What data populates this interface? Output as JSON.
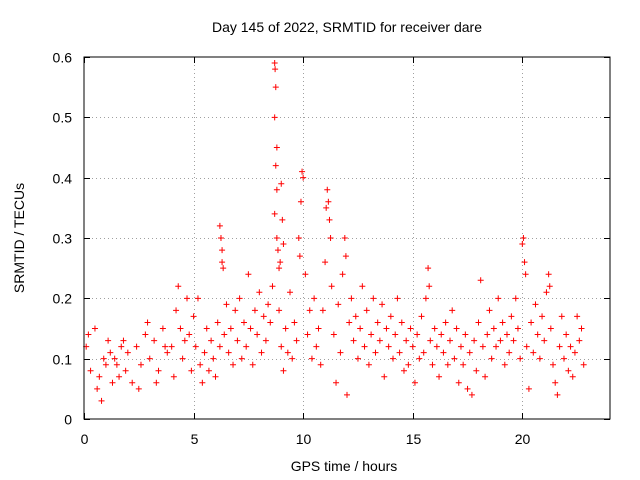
{
  "chart_data": {
    "type": "scatter",
    "title": "Day 145 of 2022, SRMTID for receiver dare",
    "xlabel": "GPS time / hours",
    "ylabel": "SRMTID / TECUs",
    "xlim": [
      0,
      24
    ],
    "ylim": [
      0,
      0.6
    ],
    "xticks": [
      0,
      5,
      10,
      15,
      20
    ],
    "xtick_labels": [
      "0",
      "5",
      "10",
      "15",
      "20"
    ],
    "yticks": [
      0,
      0.1,
      0.2,
      0.3,
      0.4,
      0.5,
      0.6
    ],
    "ytick_labels": [
      "0",
      "0.1",
      "0.2",
      "0.3",
      "0.4",
      "0.5",
      "0.6"
    ],
    "grid": true,
    "marker": "+",
    "series_color": "#ff0000",
    "series": [
      {
        "name": "SRMTID",
        "points": [
          [
            0.1,
            0.12
          ],
          [
            0.3,
            0.08
          ],
          [
            0.5,
            0.15
          ],
          [
            0.7,
            0.07
          ],
          [
            0.9,
            0.1
          ],
          [
            1.1,
            0.13
          ],
          [
            1.3,
            0.06
          ],
          [
            1.5,
            0.09
          ],
          [
            1.7,
            0.12
          ],
          [
            1.9,
            0.08
          ],
          [
            0.2,
            0.14
          ],
          [
            0.6,
            0.05
          ],
          [
            0.8,
            0.03
          ],
          [
            1.0,
            0.09
          ],
          [
            1.2,
            0.11
          ],
          [
            1.4,
            0.1
          ],
          [
            1.6,
            0.07
          ],
          [
            1.8,
            0.13
          ],
          [
            2.0,
            0.11
          ],
          [
            2.2,
            0.06
          ],
          [
            2.4,
            0.12
          ],
          [
            2.6,
            0.09
          ],
          [
            2.8,
            0.14
          ],
          [
            3.0,
            0.1
          ],
          [
            3.2,
            0.13
          ],
          [
            3.4,
            0.08
          ],
          [
            3.6,
            0.15
          ],
          [
            3.8,
            0.11
          ],
          [
            4.0,
            0.12
          ],
          [
            4.1,
            0.07
          ],
          [
            2.5,
            0.05
          ],
          [
            2.9,
            0.16
          ],
          [
            3.3,
            0.06
          ],
          [
            3.7,
            0.12
          ],
          [
            4.2,
            0.18
          ],
          [
            4.3,
            0.22
          ],
          [
            4.4,
            0.15
          ],
          [
            4.5,
            0.1
          ],
          [
            4.6,
            0.13
          ],
          [
            4.7,
            0.2
          ],
          [
            4.8,
            0.14
          ],
          [
            4.9,
            0.08
          ],
          [
            5.0,
            0.17
          ],
          [
            5.1,
            0.12
          ],
          [
            5.2,
            0.2
          ],
          [
            5.3,
            0.09
          ],
          [
            5.4,
            0.06
          ],
          [
            5.5,
            0.11
          ],
          [
            5.6,
            0.15
          ],
          [
            5.7,
            0.08
          ],
          [
            5.8,
            0.13
          ],
          [
            5.9,
            0.1
          ],
          [
            6.0,
            0.07
          ],
          [
            6.1,
            0.16
          ],
          [
            6.2,
            0.12
          ],
          [
            6.3,
            0.26
          ],
          [
            6.35,
            0.25
          ],
          [
            6.4,
            0.14
          ],
          [
            6.5,
            0.19
          ],
          [
            6.6,
            0.11
          ],
          [
            6.2,
            0.32
          ],
          [
            6.25,
            0.3
          ],
          [
            6.3,
            0.28
          ],
          [
            6.7,
            0.15
          ],
          [
            6.8,
            0.09
          ],
          [
            6.9,
            0.18
          ],
          [
            7.0,
            0.13
          ],
          [
            7.1,
            0.2
          ],
          [
            7.2,
            0.1
          ],
          [
            7.3,
            0.16
          ],
          [
            7.4,
            0.12
          ],
          [
            7.5,
            0.24
          ],
          [
            7.6,
            0.15
          ],
          [
            7.7,
            0.09
          ],
          [
            7.8,
            0.18
          ],
          [
            7.9,
            0.14
          ],
          [
            8.0,
            0.21
          ],
          [
            8.1,
            0.11
          ],
          [
            8.2,
            0.17
          ],
          [
            8.3,
            0.13
          ],
          [
            8.4,
            0.19
          ],
          [
            8.5,
            0.16
          ],
          [
            8.6,
            0.22
          ],
          [
            8.7,
            0.59
          ],
          [
            8.72,
            0.58
          ],
          [
            8.75,
            0.55
          ],
          [
            8.7,
            0.5
          ],
          [
            8.8,
            0.45
          ],
          [
            8.75,
            0.42
          ],
          [
            8.8,
            0.38
          ],
          [
            8.7,
            0.34
          ],
          [
            8.8,
            0.3
          ],
          [
            8.85,
            0.28
          ],
          [
            8.9,
            0.25
          ],
          [
            8.95,
            0.26
          ],
          [
            9.0,
            0.39
          ],
          [
            9.05,
            0.33
          ],
          [
            9.1,
            0.29
          ],
          [
            8.9,
            0.18
          ],
          [
            9.0,
            0.12
          ],
          [
            9.1,
            0.08
          ],
          [
            9.2,
            0.15
          ],
          [
            9.3,
            0.11
          ],
          [
            9.4,
            0.21
          ],
          [
            9.5,
            0.1
          ],
          [
            9.6,
            0.16
          ],
          [
            9.7,
            0.13
          ],
          [
            9.8,
            0.3
          ],
          [
            9.85,
            0.27
          ],
          [
            9.9,
            0.36
          ],
          [
            9.95,
            0.41
          ],
          [
            10.0,
            0.4
          ],
          [
            10.1,
            0.24
          ],
          [
            10.2,
            0.14
          ],
          [
            10.3,
            0.18
          ],
          [
            10.4,
            0.1
          ],
          [
            10.5,
            0.2
          ],
          [
            10.6,
            0.12
          ],
          [
            10.7,
            0.15
          ],
          [
            10.8,
            0.09
          ],
          [
            10.9,
            0.18
          ],
          [
            11.0,
            0.26
          ],
          [
            11.05,
            0.35
          ],
          [
            11.1,
            0.38
          ],
          [
            11.15,
            0.36
          ],
          [
            11.2,
            0.33
          ],
          [
            11.25,
            0.3
          ],
          [
            11.3,
            0.22
          ],
          [
            11.4,
            0.14
          ],
          [
            11.5,
            0.06
          ],
          [
            11.6,
            0.19
          ],
          [
            11.7,
            0.11
          ],
          [
            11.8,
            0.24
          ],
          [
            11.9,
            0.3
          ],
          [
            11.95,
            0.27
          ],
          [
            12.0,
            0.04
          ],
          [
            12.1,
            0.16
          ],
          [
            12.2,
            0.2
          ],
          [
            12.3,
            0.13
          ],
          [
            12.4,
            0.17
          ],
          [
            12.5,
            0.1
          ],
          [
            12.6,
            0.15
          ],
          [
            12.7,
            0.22
          ],
          [
            12.8,
            0.12
          ],
          [
            12.9,
            0.18
          ],
          [
            13.0,
            0.09
          ],
          [
            13.1,
            0.14
          ],
          [
            13.2,
            0.2
          ],
          [
            13.3,
            0.11
          ],
          [
            13.4,
            0.16
          ],
          [
            13.5,
            0.13
          ],
          [
            13.6,
            0.19
          ],
          [
            13.7,
            0.07
          ],
          [
            13.8,
            0.15
          ],
          [
            13.9,
            0.12
          ],
          [
            14.0,
            0.17
          ],
          [
            14.1,
            0.1
          ],
          [
            14.2,
            0.14
          ],
          [
            14.3,
            0.2
          ],
          [
            14.4,
            0.11
          ],
          [
            14.5,
            0.16
          ],
          [
            14.6,
            0.08
          ],
          [
            14.7,
            0.13
          ],
          [
            14.8,
            0.09
          ],
          [
            14.9,
            0.15
          ],
          [
            15.0,
            0.12
          ],
          [
            15.1,
            0.06
          ],
          [
            15.2,
            0.14
          ],
          [
            15.3,
            0.1
          ],
          [
            15.4,
            0.17
          ],
          [
            15.5,
            0.11
          ],
          [
            15.6,
            0.2
          ],
          [
            15.7,
            0.25
          ],
          [
            15.75,
            0.22
          ],
          [
            15.8,
            0.13
          ],
          [
            15.9,
            0.09
          ],
          [
            16.0,
            0.15
          ],
          [
            16.1,
            0.12
          ],
          [
            16.2,
            0.07
          ],
          [
            16.3,
            0.14
          ],
          [
            16.4,
            0.11
          ],
          [
            16.5,
            0.16
          ],
          [
            16.6,
            0.09
          ],
          [
            16.7,
            0.13
          ],
          [
            16.8,
            0.18
          ],
          [
            16.9,
            0.1
          ],
          [
            17.0,
            0.15
          ],
          [
            17.1,
            0.06
          ],
          [
            17.2,
            0.12
          ],
          [
            17.3,
            0.09
          ],
          [
            17.4,
            0.14
          ],
          [
            17.5,
            0.05
          ],
          [
            17.6,
            0.11
          ],
          [
            17.7,
            0.04
          ],
          [
            17.8,
            0.13
          ],
          [
            17.9,
            0.08
          ],
          [
            18.0,
            0.16
          ],
          [
            18.1,
            0.23
          ],
          [
            18.2,
            0.12
          ],
          [
            18.3,
            0.07
          ],
          [
            18.4,
            0.14
          ],
          [
            18.5,
            0.18
          ],
          [
            18.6,
            0.1
          ],
          [
            18.7,
            0.15
          ],
          [
            18.8,
            0.12
          ],
          [
            18.9,
            0.2
          ],
          [
            19.0,
            0.13
          ],
          [
            19.1,
            0.16
          ],
          [
            19.2,
            0.09
          ],
          [
            19.3,
            0.14
          ],
          [
            19.4,
            0.11
          ],
          [
            19.5,
            0.17
          ],
          [
            19.6,
            0.13
          ],
          [
            19.7,
            0.2
          ],
          [
            19.8,
            0.15
          ],
          [
            19.9,
            0.1
          ],
          [
            20.0,
            0.29
          ],
          [
            20.05,
            0.3
          ],
          [
            20.1,
            0.26
          ],
          [
            20.15,
            0.24
          ],
          [
            20.2,
            0.12
          ],
          [
            20.3,
            0.05
          ],
          [
            20.4,
            0.16
          ],
          [
            20.5,
            0.11
          ],
          [
            20.6,
            0.19
          ],
          [
            20.7,
            0.14
          ],
          [
            20.8,
            0.1
          ],
          [
            20.9,
            0.17
          ],
          [
            21.0,
            0.13
          ],
          [
            21.1,
            0.21
          ],
          [
            21.2,
            0.24
          ],
          [
            21.25,
            0.22
          ],
          [
            21.3,
            0.15
          ],
          [
            21.4,
            0.09
          ],
          [
            21.5,
            0.06
          ],
          [
            21.6,
            0.04
          ],
          [
            21.7,
            0.12
          ],
          [
            21.8,
            0.17
          ],
          [
            21.9,
            0.1
          ],
          [
            22.0,
            0.14
          ],
          [
            22.1,
            0.08
          ],
          [
            22.2,
            0.12
          ],
          [
            22.3,
            0.07
          ],
          [
            22.4,
            0.11
          ],
          [
            22.5,
            0.17
          ],
          [
            22.6,
            0.13
          ],
          [
            22.7,
            0.15
          ],
          [
            22.8,
            0.09
          ]
        ]
      }
    ]
  }
}
